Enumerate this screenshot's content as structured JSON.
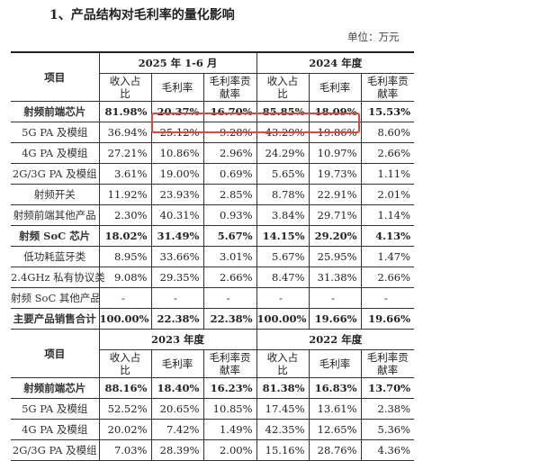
{
  "title": "1、产品结构对毛利率的量化影响",
  "unit": "单位：万元",
  "item_header": "项目",
  "sub_headers": [
    "收入占比",
    "毛利率",
    "毛利率贡献率"
  ],
  "sections": [
    {
      "periods": [
        "2025 年 1-6 月",
        "2024 年度"
      ],
      "rows": [
        {
          "label": "射频前端芯片",
          "bold": true,
          "values": [
            "81.98%",
            "20.37%",
            "16.70%",
            "85.85%",
            "18.09%",
            "15.53%"
          ]
        },
        {
          "label": "5G PA 及模组",
          "bold": false,
          "highlighted": true,
          "values": [
            "36.94%",
            "25.12%",
            "9.28%",
            "43.29%",
            "19.86%",
            "8.60%"
          ]
        },
        {
          "label": "4G PA 及模组",
          "bold": false,
          "values": [
            "27.21%",
            "10.86%",
            "2.96%",
            "24.29%",
            "10.97%",
            "2.66%"
          ]
        },
        {
          "label": "2G/3G PA 及模组",
          "bold": false,
          "values": [
            "3.61%",
            "19.00%",
            "0.69%",
            "5.65%",
            "19.73%",
            "1.11%"
          ]
        },
        {
          "label": "射频开关",
          "bold": false,
          "values": [
            "11.92%",
            "23.93%",
            "2.85%",
            "8.78%",
            "22.91%",
            "2.01%"
          ]
        },
        {
          "label": "射频前端其他产品",
          "bold": false,
          "values": [
            "2.30%",
            "40.31%",
            "0.93%",
            "3.84%",
            "29.71%",
            "1.14%"
          ]
        },
        {
          "label": "射频 SoC 芯片",
          "bold": true,
          "values": [
            "18.02%",
            "31.49%",
            "5.67%",
            "14.15%",
            "29.20%",
            "4.13%"
          ]
        },
        {
          "label": "低功耗蓝牙类",
          "bold": false,
          "values": [
            "8.95%",
            "33.66%",
            "3.01%",
            "5.67%",
            "25.95%",
            "1.47%"
          ]
        },
        {
          "label": "2.4GHz 私有协议类",
          "bold": false,
          "values": [
            "9.08%",
            "29.35%",
            "2.66%",
            "8.47%",
            "31.38%",
            "2.66%"
          ]
        },
        {
          "label": "射频 SoC 其他产品",
          "bold": false,
          "values": [
            "-",
            "-",
            "-",
            "-",
            "-",
            "-"
          ]
        },
        {
          "label": "主要产品销售合计",
          "bold": true,
          "values": [
            "100.00%",
            "22.38%",
            "22.38%",
            "100.00%",
            "19.66%",
            "19.66%"
          ]
        }
      ]
    },
    {
      "periods": [
        "2023 年度",
        "2022 年度"
      ],
      "rows": [
        {
          "label": "射频前端芯片",
          "bold": true,
          "values": [
            "88.16%",
            "18.40%",
            "16.23%",
            "81.38%",
            "16.83%",
            "13.70%"
          ]
        },
        {
          "label": "5G PA 及模组",
          "bold": false,
          "values": [
            "52.52%",
            "20.65%",
            "10.85%",
            "17.45%",
            "13.61%",
            "2.38%"
          ]
        },
        {
          "label": "4G PA 及模组",
          "bold": false,
          "values": [
            "20.02%",
            "7.42%",
            "1.49%",
            "42.35%",
            "12.65%",
            "5.36%"
          ]
        },
        {
          "label": "2G/3G PA 及模组",
          "bold": false,
          "values": [
            "7.03%",
            "28.39%",
            "2.00%",
            "15.16%",
            "28.76%",
            "4.36%"
          ]
        }
      ]
    }
  ],
  "highlight_color": "#e0463a"
}
